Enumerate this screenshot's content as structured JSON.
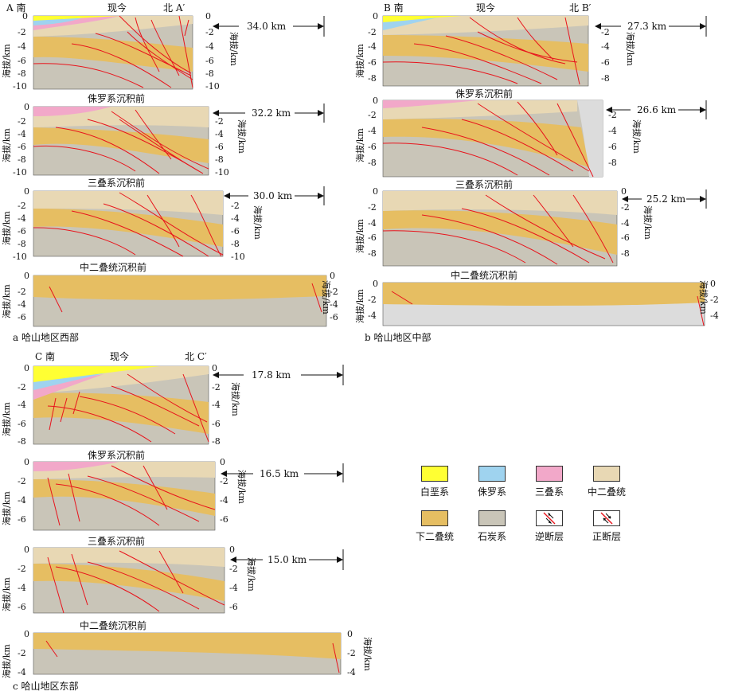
{
  "colors": {
    "cretaceous": "#ffff33",
    "jurassic": "#9fd3ef",
    "triassic": "#f2a8c9",
    "mid_permian": "#e8d8b4",
    "lower_permian": "#e6be62",
    "carboniferous": "#c9c5b8",
    "fault": "#e8141c",
    "gray_basement": "#dcdcdc"
  },
  "captions": {
    "a": "a 哈山地区西部",
    "b": "b 哈山地区中部",
    "c": "c 哈山地区东部"
  },
  "axis_title": "海拔/km",
  "stage_titles": {
    "present": "现今",
    "pre_jurassic": "侏罗系沉积前",
    "pre_triassic": "三叠系沉积前",
    "pre_mid_permian": "中二叠统沉积前"
  },
  "panel_a": {
    "left_label": "A 南",
    "right_label": "北 A′",
    "left_ticks": [
      "0",
      "-2",
      "-4",
      "-6",
      "-8",
      "-10"
    ],
    "right_ticks": [
      "0",
      "-2",
      "-4",
      "-6",
      "-8",
      "-10"
    ],
    "mid_ticks": [
      "0",
      "-2",
      "-4",
      "-6",
      "-8",
      "-10"
    ],
    "small_ticks": [
      "0",
      "-2",
      "-4",
      "-6"
    ],
    "widths": [
      "34.0 km",
      "32.2 km",
      "30.0 km"
    ]
  },
  "panel_b": {
    "left_label": "B 南",
    "right_label": "北 B′",
    "left_ticks": [
      "0",
      "-2",
      "-4",
      "-6",
      "-8"
    ],
    "right_ticks": [
      "-2",
      "-4",
      "-6",
      "-8"
    ],
    "mid_ticks": [
      "0",
      "-2",
      "-4",
      "-6",
      "-8"
    ],
    "small_ticks": [
      "0",
      "-2",
      "-4"
    ],
    "widths": [
      "27.3 km",
      "26.6 km",
      "25.2 km"
    ]
  },
  "panel_c": {
    "left_label": "C 南",
    "right_label": "北 C′",
    "left_ticks": [
      "0",
      "-2",
      "-4",
      "-6",
      "-8"
    ],
    "right_ticks": [
      "0",
      "-2",
      "-4",
      "-6",
      "-8"
    ],
    "mid_ticks": [
      "0",
      "-2",
      "-4",
      "-6"
    ],
    "small_ticks": [
      "0",
      "-2",
      "-4"
    ],
    "widths": [
      "17.8 km",
      "16.5 km",
      "15.0 km"
    ]
  },
  "legend": [
    {
      "label": "白垩系",
      "color": "#ffff33"
    },
    {
      "label": "侏罗系",
      "color": "#9fd3ef"
    },
    {
      "label": "三叠系",
      "color": "#f2a8c9"
    },
    {
      "label": "中二叠统",
      "color": "#e8d8b4"
    },
    {
      "label": "下二叠统",
      "color": "#e6be62"
    },
    {
      "label": "石炭系",
      "color": "#c9c5b8"
    },
    {
      "label": "逆断层",
      "icon": "reverse-fault-icon"
    },
    {
      "label": "正断层",
      "icon": "normal-fault-icon"
    }
  ]
}
